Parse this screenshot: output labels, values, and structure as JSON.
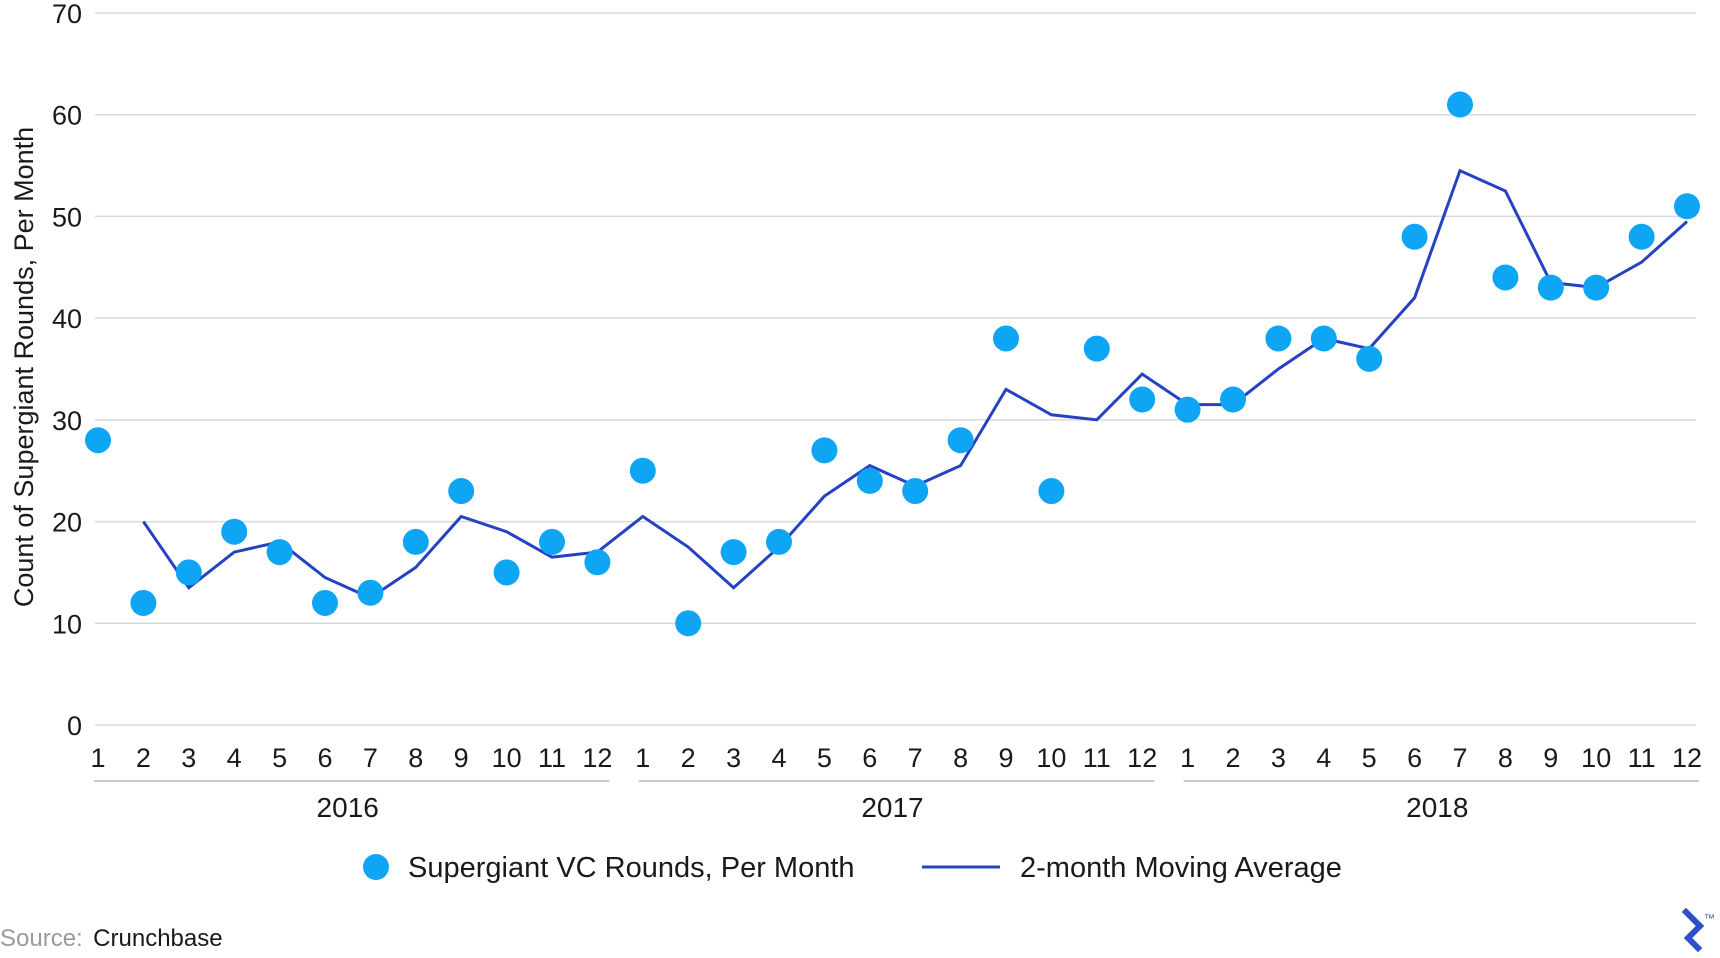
{
  "chart_data": {
    "type": "scatter",
    "ylabel": "Count of Supergiant Rounds, Per Month",
    "xlabel": "",
    "ylim": [
      0,
      70
    ],
    "yticks": [
      0,
      10,
      20,
      30,
      40,
      50,
      60,
      70
    ],
    "grid": true,
    "legend_position": "bottom",
    "groups": [
      {
        "label": "2016",
        "months": [
          "1",
          "2",
          "3",
          "4",
          "5",
          "6",
          "7",
          "8",
          "9",
          "10",
          "11",
          "12"
        ]
      },
      {
        "label": "2017",
        "months": [
          "1",
          "2",
          "3",
          "4",
          "5",
          "6",
          "7",
          "8",
          "9",
          "10",
          "11",
          "12"
        ]
      },
      {
        "label": "2018",
        "months": [
          "1",
          "2",
          "3",
          "4",
          "5",
          "6",
          "7",
          "8",
          "9",
          "10",
          "11",
          "12"
        ]
      }
    ],
    "series": [
      {
        "name": "Supergiant VC Rounds, Per Month",
        "type": "scatter",
        "color": "#0ea5f5",
        "values": [
          28,
          12,
          15,
          19,
          17,
          12,
          13,
          18,
          23,
          15,
          18,
          16,
          25,
          10,
          17,
          18,
          27,
          24,
          23,
          28,
          38,
          23,
          37,
          32,
          31,
          32,
          38,
          38,
          36,
          48,
          61,
          44,
          43,
          43,
          48,
          51
        ]
      },
      {
        "name": "2-month Moving Average",
        "type": "line",
        "color": "#2442c2",
        "values": [
          null,
          20,
          13.5,
          17,
          18,
          14.5,
          12.5,
          15.5,
          20.5,
          19,
          16.5,
          17,
          20.5,
          17.5,
          13.5,
          17.5,
          22.5,
          25.5,
          23.5,
          25.5,
          33,
          30.5,
          30,
          34.5,
          31.5,
          31.5,
          35,
          38,
          37,
          42,
          54.5,
          52.5,
          43.5,
          43,
          45.5,
          49.5
        ]
      }
    ]
  },
  "source": {
    "prefix": "Source:",
    "name": "Crunchbase"
  },
  "logo": {
    "mark": "™",
    "color": "#2d4fc8"
  }
}
